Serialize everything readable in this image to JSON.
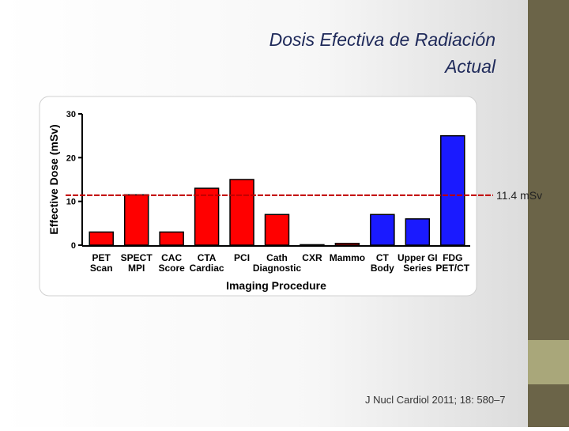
{
  "slide_title": "Dosis Efectiva de Radiación Actual",
  "citation": "J Nucl Cardiol 2011; 18: 580–7",
  "chart_data": {
    "type": "bar",
    "categories": [
      [
        "PET",
        "Scan"
      ],
      [
        "SPECT",
        "MPI"
      ],
      [
        "CAC",
        "Score"
      ],
      [
        "CTA",
        "Cardiac"
      ],
      [
        "PCI"
      ],
      [
        "Cath",
        "Diagnostic"
      ],
      [
        "CXR"
      ],
      [
        "Mammo"
      ],
      [
        "CT",
        "Body"
      ],
      [
        "Upper GI",
        "Series"
      ],
      [
        "FDG",
        "PET/CT"
      ]
    ],
    "values": [
      3,
      11.5,
      3,
      13,
      15,
      7,
      0.1,
      0.4,
      7,
      6,
      25
    ],
    "colors": [
      "#ff0000",
      "#ff0000",
      "#ff0000",
      "#ff0000",
      "#ff0000",
      "#ff0000",
      "#ff0000",
      "#ff0000",
      "#1a1aff",
      "#1a1aff",
      "#1a1aff"
    ],
    "ylim": [
      0,
      30
    ],
    "yticks": [
      0,
      10,
      20,
      30
    ],
    "ylabel": "Effective Dose (mSv)",
    "xlabel": "Imaging Procedure",
    "reference_line": {
      "value": 11.4,
      "label": "11.4 mSv",
      "color": "#c00000"
    }
  }
}
